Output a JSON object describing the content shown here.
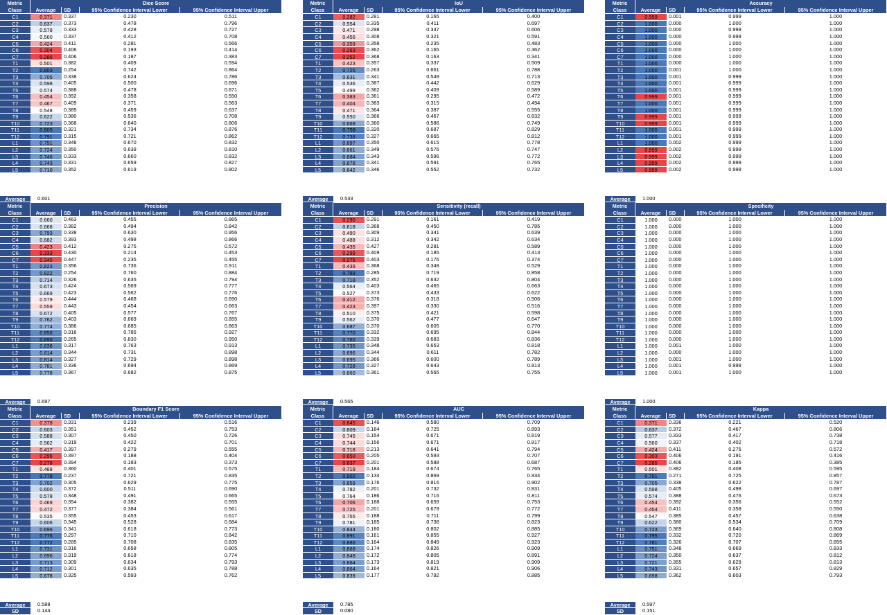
{
  "headers": {
    "metric": "Metric",
    "class": "Class",
    "average": "Average",
    "sd": "SD",
    "lower": "95% Confidence Interval Lower",
    "upper": "95% Confidence Interval Upper"
  },
  "summary_labels": {
    "average": "Average",
    "sd": "SD"
  },
  "colors": {
    "header_blue": "#2e4f8a",
    "high": "#4a78b8",
    "low": "#e8474a",
    "white": "#ffffff"
  },
  "classes": [
    "C1",
    "C2",
    "C3",
    "C4",
    "C5",
    "C6",
    "C7",
    "T1",
    "T2",
    "T3",
    "T4",
    "T5",
    "T6",
    "T7",
    "T8",
    "T9",
    "T10",
    "T11",
    "T12",
    "L1",
    "L2",
    "L3",
    "L4",
    "L5"
  ],
  "tables": [
    {
      "title": "Dice Score",
      "avg": [
        "0.371",
        "0.637",
        "0.578",
        "0.560",
        "0.424",
        "0.304",
        "0.285",
        "0.501",
        "0.803",
        "0.705",
        "0.598",
        "0.574",
        "0.454",
        "0.467",
        "0.548",
        "0.622",
        "0.723",
        "0.805",
        "0.791",
        "0.751",
        "0.724",
        "0.746",
        "0.743",
        "0.710"
      ],
      "sd": [
        "0.337",
        "0.373",
        "0.333",
        "0.337",
        "0.411",
        "0.406",
        "0.406",
        "0.382",
        "0.254",
        "0.338",
        "0.405",
        "0.388",
        "0.392",
        "0.409",
        "0.385",
        "0.380",
        "0.368",
        "0.321",
        "0.315",
        "0.348",
        "0.350",
        "0.333",
        "0.331",
        "0.352"
      ],
      "lower": [
        "0.230",
        "0.478",
        "0.428",
        "0.412",
        "0.281",
        "0.193",
        "0.187",
        "0.409",
        "0.742",
        "0.624",
        "0.500",
        "0.478",
        "0.358",
        "0.371",
        "0.459",
        "0.536",
        "0.640",
        "0.734",
        "0.721",
        "0.670",
        "0.639",
        "0.660",
        "0.659",
        "0.619"
      ],
      "upper": [
        "0.511",
        "0.796",
        "0.727",
        "0.708",
        "0.566",
        "0.414",
        "0.383",
        "0.594",
        "0.864",
        "0.786",
        "0.696",
        "0.671",
        "0.550",
        "0.563",
        "0.637",
        "0.708",
        "0.806",
        "0.876",
        "0.862",
        "0.832",
        "0.810",
        "0.832",
        "0.827",
        "0.802"
      ],
      "summary_avg": "0.601",
      "summary_sd": "0.153"
    },
    {
      "title": "IoU",
      "avg": [
        "0.282",
        "0.554",
        "0.471",
        "0.456",
        "0.359",
        "0.263",
        "0.252",
        "0.423",
        "0.725",
        "0.631",
        "0.536",
        "0.499",
        "0.383",
        "0.404",
        "0.471",
        "0.550",
        "0.668",
        "0.758",
        "0.738",
        "0.697",
        "0.661",
        "0.684",
        "0.678",
        "0.642"
      ],
      "sd": [
        "0.281",
        "0.335",
        "0.298",
        "0.308",
        "0.358",
        "0.362",
        "0.368",
        "0.357",
        "0.263",
        "0.341",
        "0.387",
        "0.362",
        "0.361",
        "0.383",
        "0.364",
        "0.366",
        "0.360",
        "0.320",
        "0.327",
        "0.350",
        "0.349",
        "0.343",
        "0.341",
        "0.346"
      ],
      "lower": [
        "0.165",
        "0.411",
        "0.337",
        "0.321",
        "0.235",
        "0.165",
        "0.163",
        "0.337",
        "0.661",
        "0.549",
        "0.442",
        "0.409",
        "0.295",
        "0.315",
        "0.387",
        "0.467",
        "0.586",
        "0.687",
        "0.665",
        "0.615",
        "0.576",
        "0.596",
        "0.591",
        "0.552"
      ],
      "upper": [
        "0.400",
        "0.697",
        "0.606",
        "0.591",
        "0.483",
        "0.362",
        "0.341",
        "0.509",
        "0.788",
        "0.713",
        "0.629",
        "0.589",
        "0.472",
        "0.494",
        "0.555",
        "0.632",
        "0.749",
        "0.829",
        "0.812",
        "0.778",
        "0.747",
        "0.772",
        "0.765",
        "0.732"
      ],
      "summary_avg": "0.533",
      "summary_sd": "0.154"
    },
    {
      "title": "Accuracy",
      "avg": [
        "0.999",
        "1.000",
        "1.000",
        "1.000",
        "1.000",
        "1.000",
        "1.000",
        "1.000",
        "1.000",
        "1.000",
        "1.000",
        "1.000",
        "0.999",
        "1.000",
        "1.000",
        "0.999",
        "0.999",
        "1.000",
        "1.000",
        "1.000",
        "0.999",
        "0.999",
        "0.999",
        "0.999"
      ],
      "sd": [
        "0.001",
        "0.000",
        "0.000",
        "0.000",
        "0.000",
        "0.000",
        "0.000",
        "0.000",
        "0.001",
        "0.001",
        "0.001",
        "0.001",
        "0.001",
        "0.001",
        "0.001",
        "0.001",
        "0.001",
        "0.001",
        "0.001",
        "0.002",
        "0.002",
        "0.002",
        "0.002",
        "0.002"
      ],
      "lower": [
        "0.999",
        "1.000",
        "0.999",
        "0.999",
        "1.000",
        "1.000",
        "1.000",
        "1.000",
        "1.000",
        "0.999",
        "0.999",
        "0.999",
        "0.999",
        "0.999",
        "0.999",
        "0.999",
        "0.999",
        "0.999",
        "0.999",
        "0.999",
        "0.999",
        "0.999",
        "0.999",
        "0.999"
      ],
      "upper": [
        "1.000",
        "1.000",
        "1.000",
        "1.000",
        "1.000",
        "1.000",
        "1.000",
        "1.000",
        "1.000",
        "1.000",
        "1.000",
        "1.000",
        "1.000",
        "1.000",
        "1.000",
        "1.000",
        "1.000",
        "1.000",
        "1.000",
        "1.000",
        "1.000",
        "1.000",
        "1.000",
        "1.000"
      ],
      "summary_avg": "1.000",
      "summary_sd": "0.000"
    },
    {
      "title": "Precision",
      "avg": [
        "0.660",
        "0.668",
        "0.793",
        "0.682",
        "0.423",
        "0.333",
        "0.345",
        "0.823",
        "0.822",
        "0.714",
        "0.673",
        "0.669",
        "0.579",
        "0.559",
        "0.672",
        "0.762",
        "0.774",
        "0.856",
        "0.890",
        "0.838",
        "0.814",
        "0.814",
        "0.781",
        "0.778"
      ],
      "sd": [
        "0.463",
        "0.382",
        "0.338",
        "0.393",
        "0.412",
        "0.430",
        "0.447",
        "0.356",
        "0.254",
        "0.326",
        "0.424",
        "0.423",
        "0.444",
        "0.443",
        "0.405",
        "0.403",
        "0.386",
        "0.316",
        "0.265",
        "0.317",
        "0.344",
        "0.327",
        "0.336",
        "0.367"
      ],
      "lower": [
        "0.455",
        "0.494",
        "0.630",
        "0.498",
        "0.275",
        "0.214",
        "0.235",
        "0.736",
        "0.760",
        "0.635",
        "0.569",
        "0.562",
        "0.468",
        "0.454",
        "0.577",
        "0.669",
        "0.685",
        "0.785",
        "0.830",
        "0.763",
        "0.731",
        "0.729",
        "0.694",
        "0.682"
      ],
      "upper": [
        "0.865",
        "0.842",
        "0.956",
        "0.866",
        "0.572",
        "0.453",
        "0.455",
        "0.911",
        "0.884",
        "0.794",
        "0.777",
        "0.776",
        "0.690",
        "0.663",
        "0.767",
        "0.855",
        "0.863",
        "0.927",
        "0.950",
        "0.913",
        "0.898",
        "0.898",
        "0.869",
        "0.875"
      ],
      "summary_avg": "0.697",
      "summary_sd": "0.150"
    },
    {
      "title": "Sensitivity (recall)",
      "avg": [
        "0.290",
        "0.618",
        "0.490",
        "0.488",
        "0.435",
        "0.299",
        "0.275",
        "0.439",
        "0.789",
        "0.718",
        "0.564",
        "0.527",
        "0.412",
        "0.423",
        "0.510",
        "0.562",
        "0.687",
        "0.770",
        "0.760",
        "0.735",
        "0.696",
        "0.695",
        "0.728",
        "0.660"
      ],
      "sd": [
        "0.291",
        "0.368",
        "0.309",
        "0.312",
        "0.427",
        "0.409",
        "0.403",
        "0.368",
        "0.285",
        "0.352",
        "0.403",
        "0.373",
        "0.376",
        "0.397",
        "0.375",
        "0.370",
        "0.370",
        "0.332",
        "0.339",
        "0.348",
        "0.344",
        "0.366",
        "0.327",
        "0.361"
      ],
      "lower": [
        "0.161",
        "0.450",
        "0.341",
        "0.342",
        "0.281",
        "0.185",
        "0.176",
        "0.348",
        "0.719",
        "0.632",
        "0.465",
        "0.433",
        "0.318",
        "0.330",
        "0.421",
        "0.477",
        "0.605",
        "0.695",
        "0.683",
        "0.653",
        "0.611",
        "0.600",
        "0.643",
        "0.565"
      ],
      "upper": [
        "0.419",
        "0.785",
        "0.639",
        "0.634",
        "0.589",
        "0.413",
        "0.374",
        "0.529",
        "0.858",
        "0.804",
        "0.663",
        "0.622",
        "0.506",
        "0.516",
        "0.598",
        "0.647",
        "0.770",
        "0.844",
        "0.836",
        "0.818",
        "0.782",
        "0.789",
        "0.813",
        "0.755"
      ],
      "summary_avg": "0.565",
      "summary_sd": "0.157"
    },
    {
      "title": "Specificity",
      "avg": [
        "1.000",
        "1.000",
        "1.000",
        "1.000",
        "1.000",
        "1.000",
        "1.000",
        "1.000",
        "1.000",
        "1.000",
        "1.000",
        "1.000",
        "1.000",
        "1.000",
        "1.000",
        "1.000",
        "1.000",
        "1.000",
        "1.000",
        "1.000",
        "1.000",
        "1.000",
        "1.000",
        "1.000"
      ],
      "sd": [
        "0.000",
        "0.000",
        "0.000",
        "0.000",
        "0.000",
        "0.000",
        "0.000",
        "0.000",
        "0.000",
        "0.000",
        "0.000",
        "0.000",
        "0.000",
        "0.000",
        "0.000",
        "0.000",
        "0.000",
        "0.000",
        "0.000",
        "0.001",
        "0.000",
        "0.001",
        "0.001",
        "0.001"
      ],
      "lower": [
        "1.000",
        "1.000",
        "1.000",
        "1.000",
        "1.000",
        "1.000",
        "1.000",
        "1.000",
        "1.000",
        "1.000",
        "1.000",
        "1.000",
        "1.000",
        "1.000",
        "1.000",
        "1.000",
        "1.000",
        "1.000",
        "1.000",
        "1.000",
        "1.000",
        "1.000",
        "0.999",
        "1.000"
      ],
      "upper": [
        "1.000",
        "1.000",
        "1.000",
        "1.000",
        "1.000",
        "1.000",
        "1.000",
        "1.000",
        "1.000",
        "1.000",
        "1.000",
        "1.000",
        "1.000",
        "1.000",
        "1.000",
        "1.000",
        "1.000",
        "1.000",
        "1.000",
        "1.000",
        "1.000",
        "1.000",
        "1.000",
        "1.000"
      ],
      "summary_avg": "1.000",
      "summary_sd": "0.000"
    },
    {
      "title": "Boundary F1 Score",
      "avg": [
        "0.378",
        "0.603",
        "0.588",
        "0.562",
        "0.417",
        "0.296",
        "0.278",
        "0.488",
        "0.778",
        "0.702",
        "0.600",
        "0.578",
        "0.469",
        "0.472",
        "0.535",
        "0.606",
        "0.696",
        "0.776",
        "0.772",
        "0.731",
        "0.696",
        "0.713",
        "0.712",
        "0.678"
      ],
      "sd": [
        "0.331",
        "0.351",
        "0.307",
        "0.319",
        "0.397",
        "0.397",
        "0.394",
        "0.360",
        "0.237",
        "0.305",
        "0.372",
        "0.348",
        "0.354",
        "0.377",
        "0.355",
        "0.345",
        "0.341",
        "0.297",
        "0.285",
        "0.316",
        "0.319",
        "0.309",
        "0.301",
        "0.325"
      ],
      "lower": [
        "0.239",
        "0.452",
        "0.450",
        "0.422",
        "0.279",
        "0.188",
        "0.183",
        "0.401",
        "0.721",
        "0.629",
        "0.511",
        "0.491",
        "0.382",
        "0.384",
        "0.453",
        "0.528",
        "0.618",
        "0.710",
        "0.708",
        "0.658",
        "0.618",
        "0.634",
        "0.635",
        "0.593"
      ],
      "upper": [
        "0.516",
        "0.753",
        "0.726",
        "0.701",
        "0.555",
        "0.404",
        "0.373",
        "0.575",
        "0.835",
        "0.775",
        "0.690",
        "0.665",
        "0.555",
        "0.561",
        "0.617",
        "0.684",
        "0.773",
        "0.842",
        "0.835",
        "0.805",
        "0.774",
        "0.793",
        "0.788",
        "0.762"
      ],
      "summary_avg": "0.588",
      "summary_sd": "0.144"
    },
    {
      "title": "AUC",
      "avg": [
        "0.645",
        "0.809",
        "0.745",
        "0.744",
        "0.718",
        "0.650",
        "0.637",
        "0.719",
        "0.902",
        "0.859",
        "0.782",
        "0.764",
        "0.706",
        "0.725",
        "0.755",
        "0.781",
        "0.844",
        "0.891",
        "0.886",
        "0.868",
        "0.848",
        "0.864",
        "0.864",
        "0.839"
      ],
      "sd": [
        "0.146",
        "0.184",
        "0.154",
        "0.156",
        "0.213",
        "0.205",
        "0.201",
        "0.184",
        "0.134",
        "0.176",
        "0.201",
        "0.186",
        "0.188",
        "0.201",
        "0.188",
        "0.185",
        "0.180",
        "0.161",
        "0.164",
        "0.174",
        "0.172",
        "0.173",
        "0.164",
        "0.177"
      ],
      "lower": [
        "0.580",
        "0.725",
        "0.671",
        "0.671",
        "0.641",
        "0.593",
        "0.588",
        "0.674",
        "0.869",
        "0.816",
        "0.732",
        "0.716",
        "0.659",
        "0.678",
        "0.711",
        "0.738",
        "0.802",
        "0.855",
        "0.849",
        "0.826",
        "0.805",
        "0.819",
        "0.821",
        "0.792"
      ],
      "upper": [
        "0.709",
        "0.893",
        "0.819",
        "0.817",
        "0.794",
        "0.707",
        "0.687",
        "0.765",
        "0.934",
        "0.902",
        "0.831",
        "0.811",
        "0.753",
        "0.772",
        "0.799",
        "0.823",
        "0.885",
        "0.927",
        "0.923",
        "0.909",
        "0.891",
        "0.909",
        "0.906",
        "0.885"
      ],
      "summary_avg": "0.785",
      "summary_sd": "0.080"
    },
    {
      "title": "Kappa",
      "avg": [
        "0.371",
        "0.637",
        "0.577",
        "0.560",
        "0.424",
        "0.303",
        "0.285",
        "0.501",
        "0.791",
        "0.705",
        "0.598",
        "0.574",
        "0.454",
        "0.454",
        "0.547",
        "0.622",
        "0.723",
        "0.795",
        "0.781",
        "0.751",
        "0.724",
        "0.721",
        "0.743",
        "0.698"
      ],
      "sd": [
        "0.336",
        "0.372",
        "0.333",
        "0.337",
        "0.411",
        "0.406",
        "0.406",
        "0.382",
        "0.271",
        "0.338",
        "0.405",
        "0.388",
        "0.392",
        "0.411",
        "0.385",
        "0.380",
        "0.369",
        "0.332",
        "0.326",
        "0.348",
        "0.350",
        "0.355",
        "0.331",
        "0.362"
      ],
      "lower": [
        "0.221",
        "0.467",
        "0.417",
        "0.402",
        "0.276",
        "0.191",
        "0.185",
        "0.408",
        "0.725",
        "0.622",
        "0.498",
        "0.476",
        "0.356",
        "0.358",
        "0.457",
        "0.534",
        "0.640",
        "0.720",
        "0.707",
        "0.669",
        "0.637",
        "0.629",
        "0.657",
        "0.603"
      ],
      "upper": [
        "0.520",
        "0.806",
        "0.738",
        "0.718",
        "0.572",
        "0.416",
        "0.385",
        "0.595",
        "0.857",
        "0.787",
        "0.697",
        "0.673",
        "0.552",
        "0.550",
        "0.638",
        "0.709",
        "0.808",
        "0.869",
        "0.855",
        "0.833",
        "0.812",
        "0.813",
        "0.829",
        "0.793"
      ],
      "summary_avg": "0.597",
      "summary_sd": "0.151"
    }
  ]
}
